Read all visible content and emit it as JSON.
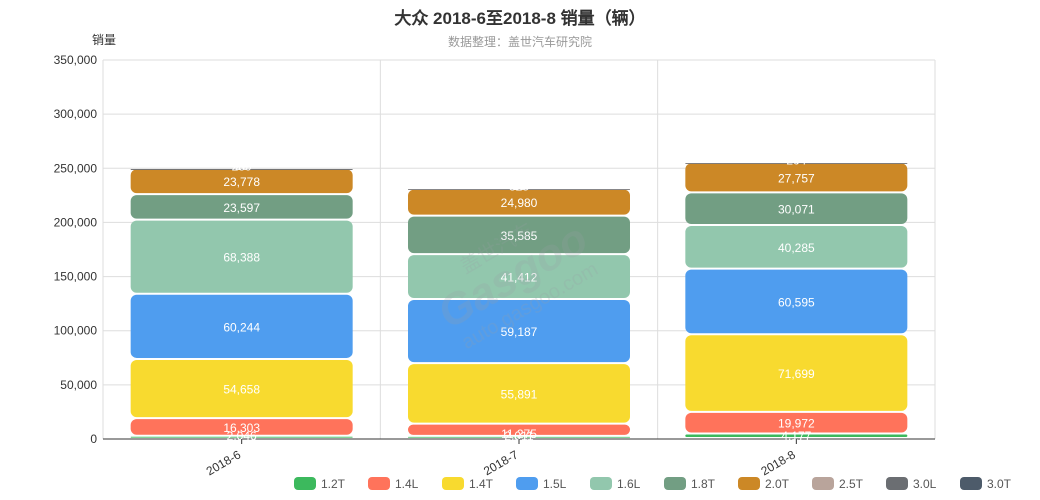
{
  "chart_data": {
    "type": "bar",
    "stacked": true,
    "title": "大众 2018-6至2018-8 销量（辆）",
    "subtitle": "数据整理：盖世汽车研究院",
    "ylabel": "销量",
    "xlabel": "",
    "ylim": [
      0,
      350000
    ],
    "yticks": [
      0,
      50000,
      100000,
      150000,
      200000,
      250000,
      300000,
      350000
    ],
    "ytick_labels": [
      "0",
      "50,000",
      "100,000",
      "150,000",
      "200,000",
      "250,000",
      "300,000",
      "350,000"
    ],
    "grid": true,
    "legend_position": "bottom-right",
    "categories": [
      "2018-6",
      "2018-7",
      "2018-8"
    ],
    "series": [
      {
        "name": "1.2T",
        "color": "#3cb95d",
        "values": [
          2046,
          2011,
          4177
        ],
        "labels": [
          "2,046",
          "2,011",
          "4,177"
        ]
      },
      {
        "name": "1.4L",
        "color": "#ff735b",
        "values": [
          16303,
          11275,
          19972
        ],
        "labels": [
          "16,303",
          "11,275",
          "19,972"
        ]
      },
      {
        "name": "1.4T",
        "color": "#f8da2f",
        "values": [
          54658,
          55891,
          71699
        ],
        "labels": [
          "54,658",
          "55,891",
          "71,699"
        ]
      },
      {
        "name": "1.5L",
        "color": "#4f9def",
        "values": [
          60244,
          59187,
          60595
        ],
        "labels": [
          "60,244",
          "59,187",
          "60,595"
        ]
      },
      {
        "name": "1.6L",
        "color": "#92c7ad",
        "values": [
          68388,
          41412,
          40285
        ],
        "labels": [
          "68,388",
          "41,412",
          "40,285"
        ]
      },
      {
        "name": "1.8T",
        "color": "#729e83",
        "values": [
          23597,
          35585,
          30071
        ],
        "labels": [
          "23,597",
          "35,585",
          "30,071"
        ]
      },
      {
        "name": "2.0T",
        "color": "#cc8826",
        "values": [
          23778,
          24980,
          27757
        ],
        "labels": [
          "23,778",
          "24,980",
          "27,757"
        ]
      },
      {
        "name": "2.5T",
        "color": "#b9a49b",
        "values": [
          289,
          325,
          204
        ],
        "labels": [
          "289",
          "325",
          "204"
        ]
      },
      {
        "name": "3.0L",
        "color": "#6b6e72",
        "values": [
          20,
          15,
          4
        ],
        "labels": [
          "20",
          "15",
          "4"
        ]
      },
      {
        "name": "3.0T",
        "color": "#4d5b6a",
        "values": [
          0,
          0,
          0
        ],
        "labels": [
          "",
          "",
          ""
        ]
      }
    ]
  },
  "watermark": {
    "brand": "Gasgoo",
    "cn": "盖世汽车",
    "url": "auto.gasgoo.com"
  }
}
